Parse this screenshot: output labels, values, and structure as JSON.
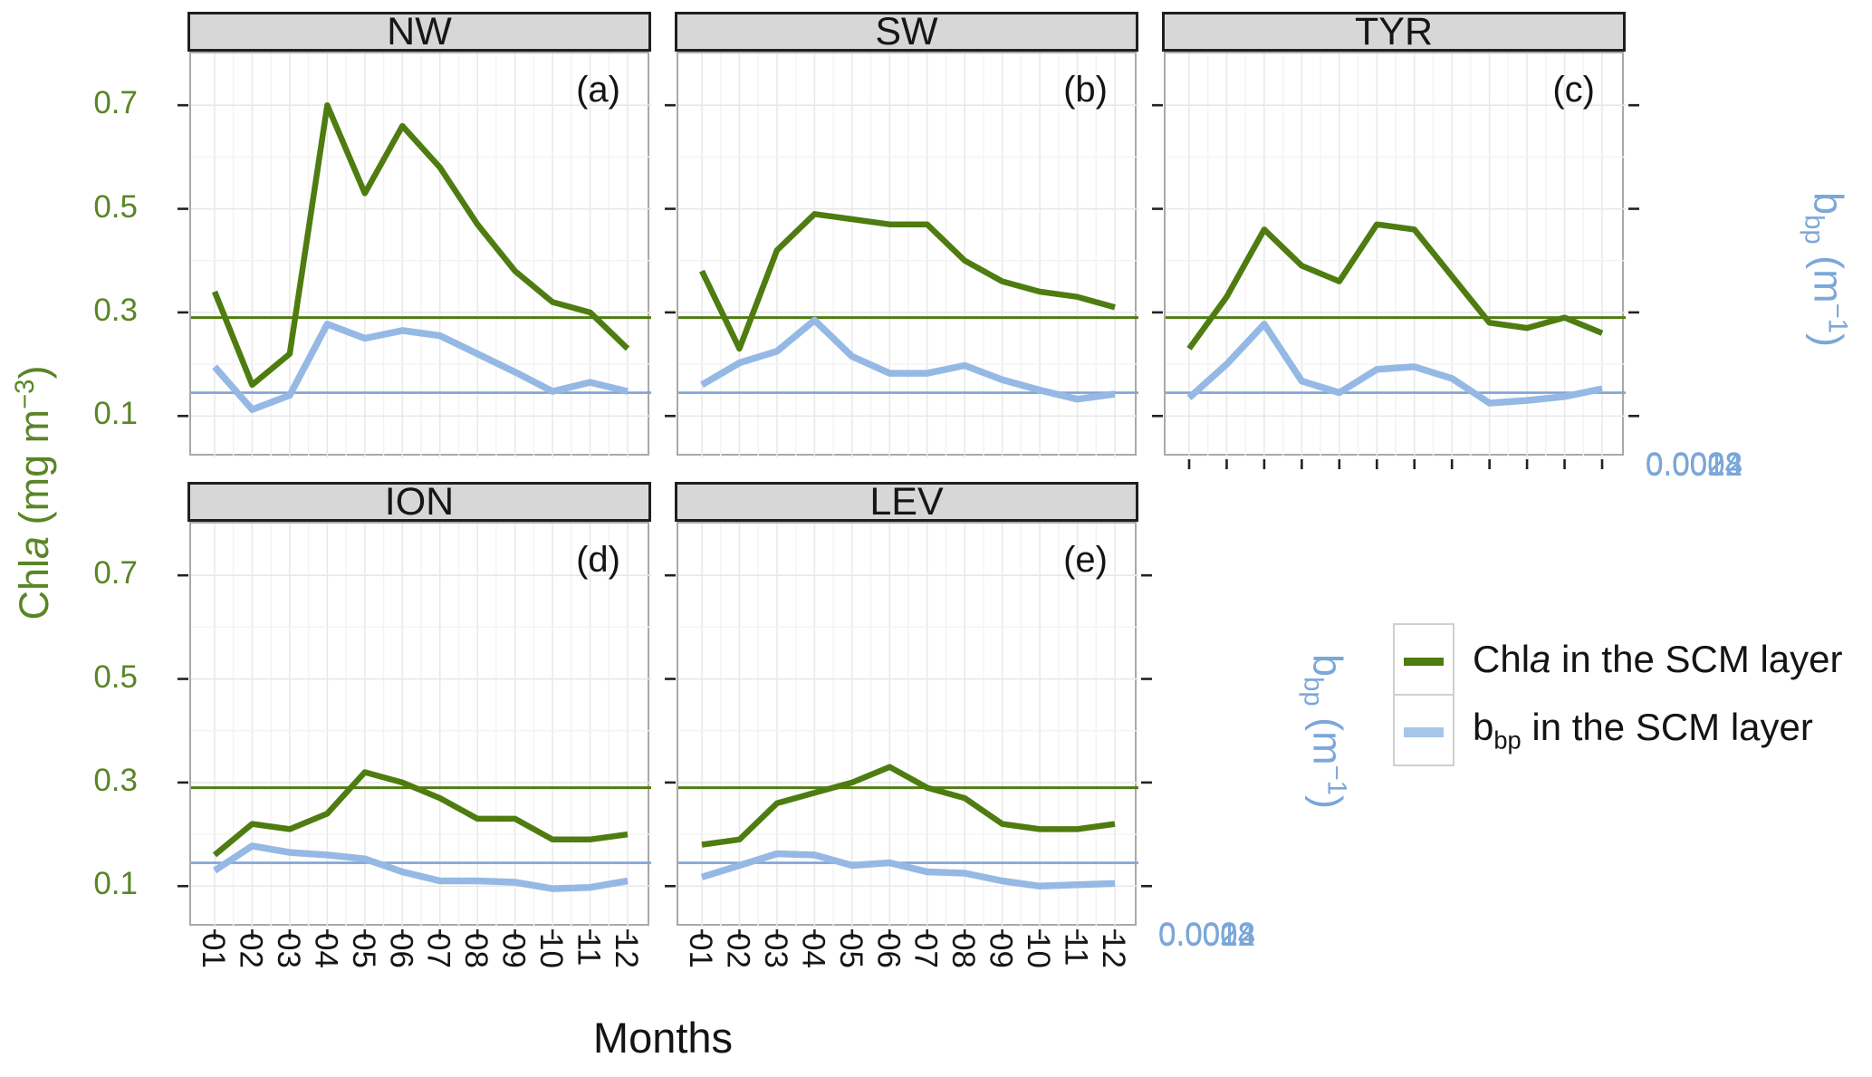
{
  "chart_data": {
    "type": "line",
    "description": "Faceted monthly climatology line chart: Chla and bbp in the SCM layer for 5 Mediterranean sub-basins",
    "x_label": "Months",
    "x_categories": [
      "01",
      "02",
      "03",
      "04",
      "05",
      "06",
      "07",
      "08",
      "09",
      "10",
      "11",
      "12"
    ],
    "y_left": {
      "label_text": "Chla (mg m−3)",
      "label_parts": {
        "pre": "Chl",
        "italic": "a",
        "mid": " (mg m",
        "sup": "−3",
        "post": ")"
      },
      "ticks": [
        "0.7",
        "0.5",
        "0.3",
        "0.1"
      ],
      "tick_values": [
        0.7,
        0.5,
        0.3,
        0.1
      ],
      "range": [
        0.02,
        0.8
      ],
      "color": "#5a8526"
    },
    "y_right": {
      "label_text": "bbp (m−1)",
      "label_parts": {
        "pre": "b",
        "sub": "bp",
        "mid": " (m",
        "sup": "−1",
        "post": ")"
      },
      "ticks": [
        "0.0028",
        "0.002",
        "0.0012",
        "0.0004"
      ],
      "tick_values": [
        0.0028,
        0.002,
        0.0012,
        0.0004
      ],
      "range": [
        8e-05,
        0.0032
      ],
      "color": "#7ba7d9"
    },
    "reference_lines": {
      "chla_mean": 0.29,
      "bbp_mean": 0.00058
    },
    "legend": {
      "position": "bottom-right",
      "items": [
        {
          "name": "chla",
          "label_text": "Chla in the SCM layer",
          "parts": {
            "pre": "Chl",
            "italic": "a",
            "post": " in the SCM layer"
          },
          "color": "#4e7c10"
        },
        {
          "name": "bbp",
          "label_text": "bbp in the SCM layer",
          "parts": {
            "pre": "b",
            "sub": "bp",
            "post": " in the SCM layer"
          },
          "color": "#a5c6ea"
        }
      ]
    },
    "facets": [
      {
        "label": "NW",
        "panel_letter": "(a)",
        "chla": [
          0.34,
          0.16,
          0.22,
          0.7,
          0.53,
          0.66,
          0.58,
          0.47,
          0.38,
          0.32,
          0.3,
          0.23
        ],
        "bbp": [
          0.00078,
          0.00045,
          0.00056,
          0.00111,
          0.001,
          0.00106,
          0.00102,
          0.00088,
          0.00074,
          0.00059,
          0.00066,
          0.00059
        ]
      },
      {
        "label": "SW",
        "panel_letter": "(b)",
        "chla": [
          0.38,
          0.23,
          0.42,
          0.49,
          0.48,
          0.47,
          0.47,
          0.4,
          0.36,
          0.34,
          0.33,
          0.31
        ],
        "bbp": [
          0.00064,
          0.00081,
          0.0009,
          0.00114,
          0.00086,
          0.00073,
          0.00073,
          0.00079,
          0.00068,
          0.0006,
          0.00053,
          0.00057
        ]
      },
      {
        "label": "TYR",
        "panel_letter": "(c)",
        "chla": [
          0.23,
          0.33,
          0.46,
          0.39,
          0.36,
          0.47,
          0.46,
          0.37,
          0.28,
          0.27,
          0.29,
          0.26
        ],
        "bbp": [
          0.00054,
          0.0008,
          0.00111,
          0.00067,
          0.00058,
          0.00076,
          0.00078,
          0.00069,
          0.0005,
          0.00052,
          0.00055,
          0.00061
        ]
      },
      {
        "label": "ION",
        "panel_letter": "(d)",
        "chla": [
          0.16,
          0.22,
          0.21,
          0.24,
          0.32,
          0.3,
          0.27,
          0.23,
          0.23,
          0.19,
          0.19,
          0.2
        ],
        "bbp": [
          0.00052,
          0.00071,
          0.00066,
          0.00064,
          0.00061,
          0.00051,
          0.00044,
          0.00044,
          0.00043,
          0.00038,
          0.00039,
          0.00044
        ]
      },
      {
        "label": "LEV",
        "panel_letter": "(e)",
        "chla": [
          0.18,
          0.19,
          0.26,
          0.28,
          0.3,
          0.33,
          0.29,
          0.27,
          0.22,
          0.21,
          0.21,
          0.22
        ],
        "bbp": [
          0.00047,
          0.00056,
          0.00065,
          0.00064,
          0.00056,
          0.00058,
          0.00051,
          0.0005,
          0.00044,
          0.0004,
          0.00041,
          0.00042
        ]
      }
    ],
    "layout_hints": {
      "facet_columns": 3,
      "grid": true,
      "gridlines": "light gray major+minor",
      "x_tick_label_rotation": 90,
      "secondary_axis_alignment": "0.1↔0.0004, 0.7↔0.0028"
    }
  },
  "colors": {
    "chla_line": "#4e7c10",
    "bbp_line": "#95b9e4",
    "bbp_refline": "#7fa3d4",
    "chla_refline": "#4e7c10",
    "strip_bg": "#d7d7d7",
    "strip_border": "#1f1f1f",
    "panel_border": "#a9a9a9",
    "grid_major": "#e8e8e8",
    "grid_minor": "#f3f3f3",
    "tick_mark": "#222222"
  }
}
